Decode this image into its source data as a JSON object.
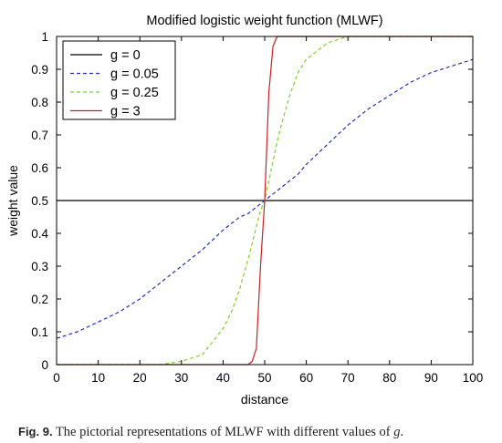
{
  "chart_data": {
    "type": "line",
    "title": "Modified logistic weight function (MLWF)",
    "xlabel": "distance",
    "ylabel": "weight value",
    "xlim": [
      0,
      100
    ],
    "ylim": [
      0,
      1
    ],
    "xticks": [
      0,
      10,
      20,
      30,
      40,
      50,
      60,
      70,
      80,
      90,
      100
    ],
    "yticks": [
      0,
      0.1,
      0.2,
      0.3,
      0.4,
      0.5,
      0.6,
      0.7,
      0.8,
      0.9,
      1
    ],
    "x": [
      0,
      5,
      10,
      15,
      20,
      25,
      30,
      35,
      40,
      42,
      44,
      46,
      47,
      48,
      49,
      50,
      51,
      52,
      53,
      54,
      56,
      58,
      60,
      65,
      70,
      75,
      80,
      85,
      90,
      95,
      100
    ],
    "grid": false,
    "legend_position": "top-left",
    "series": [
      {
        "name": "g = 0",
        "color": "#000000",
        "dash": "solid",
        "values": [
          0.5,
          0.5,
          0.5,
          0.5,
          0.5,
          0.5,
          0.5,
          0.5,
          0.5,
          0.5,
          0.5,
          0.5,
          0.5,
          0.5,
          0.5,
          0.5,
          0.5,
          0.5,
          0.5,
          0.5,
          0.5,
          0.5,
          0.5,
          0.5,
          0.5,
          0.5,
          0.5,
          0.5,
          0.5,
          0.5,
          0.5
        ]
      },
      {
        "name": "g = 0.05",
        "color": "#1f2fbf",
        "dash": "dashed",
        "values": [
          0.08,
          0.1,
          0.13,
          0.16,
          0.2,
          0.25,
          0.3,
          0.35,
          0.41,
          0.43,
          0.45,
          0.46,
          0.47,
          0.48,
          0.49,
          0.5,
          0.51,
          0.52,
          0.53,
          0.54,
          0.56,
          0.58,
          0.61,
          0.67,
          0.73,
          0.78,
          0.82,
          0.86,
          0.89,
          0.91,
          0.93
        ]
      },
      {
        "name": "g = 0.25",
        "color": "#7ed321",
        "dash": "dashed",
        "values": [
          0.0,
          0.0,
          0.0,
          0.0,
          0.0,
          0.0,
          0.01,
          0.03,
          0.11,
          0.16,
          0.23,
          0.32,
          0.37,
          0.42,
          0.47,
          0.5,
          0.56,
          0.62,
          0.68,
          0.73,
          0.82,
          0.89,
          0.93,
          0.98,
          1.0,
          1.0,
          1.0,
          1.0,
          1.0,
          1.0,
          1.0
        ]
      },
      {
        "name": "g = 3",
        "color": "#cc1f1f",
        "dash": "solid",
        "values": [
          0.0,
          0.0,
          0.0,
          0.0,
          0.0,
          0.0,
          0.0,
          0.0,
          0.0,
          0.0,
          0.0,
          0.0,
          0.01,
          0.05,
          0.3,
          0.5,
          0.83,
          0.97,
          1.0,
          1.0,
          1.0,
          1.0,
          1.0,
          1.0,
          1.0,
          1.0,
          1.0,
          1.0,
          1.0,
          1.0,
          1.0
        ]
      }
    ]
  },
  "caption": {
    "label": "Fig. 9.",
    "text": "The pictorial representations of MLWF with different values of",
    "variable": "g",
    "end": "."
  }
}
